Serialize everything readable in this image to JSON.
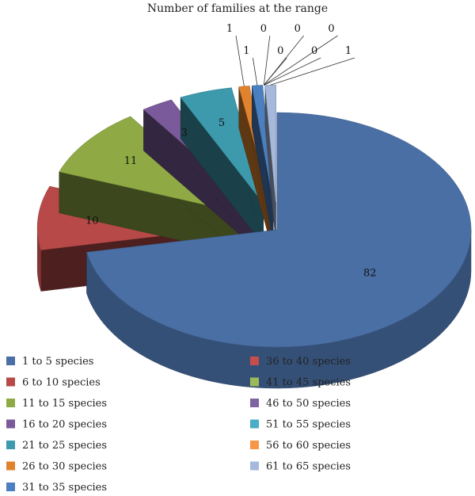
{
  "chart_data": {
    "type": "pie",
    "title": "Number of families at the range",
    "categories": [
      "1 to 5 species",
      "6 to 10 species",
      "11 to 15 species",
      "16 to 20 species",
      "21 to 25 species",
      "26 to 30 species",
      "31 to 35 species",
      "36 to 40 species",
      "41 to 45 species",
      "46 to 50 species",
      "51 to 55 species",
      "56 to 60 species",
      "61 to 65 species"
    ],
    "values": [
      82,
      10,
      11,
      3,
      5,
      1,
      1,
      0,
      0,
      0,
      0,
      0,
      1
    ],
    "colors": [
      "#4a6fa5",
      "#b74a48",
      "#8faa44",
      "#7a5a9a",
      "#3d9aad",
      "#e0832e",
      "#4a7fc0",
      "#c64d4a",
      "#9bbb59",
      "#8064a2",
      "#4bacc6",
      "#f79646",
      "#a6b9dc"
    ],
    "legend_position": "bottom"
  }
}
